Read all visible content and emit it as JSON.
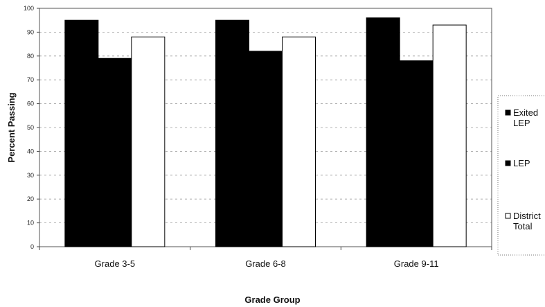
{
  "chart_data": {
    "type": "bar",
    "title": "",
    "xlabel": "Grade Group",
    "ylabel": "Percent Passing",
    "categories": [
      "Grade 3-5",
      "Grade 6-8",
      "Grade 9-11"
    ],
    "ylim": [
      0,
      100
    ],
    "yticks": [
      0,
      10,
      20,
      30,
      40,
      50,
      60,
      70,
      80,
      90,
      100
    ],
    "grid": true,
    "legend_position": "right",
    "series": [
      {
        "name": "Exited LEP",
        "legend_lines": [
          "Exited",
          "LEP"
        ],
        "values": [
          95,
          95,
          96
        ],
        "color": "#000000"
      },
      {
        "name": "LEP",
        "legend_lines": [
          "LEP"
        ],
        "values": [
          79,
          82,
          78
        ],
        "color": "#000000"
      },
      {
        "name": "District Total",
        "legend_lines": [
          "District",
          "Total"
        ],
        "values": [
          88,
          88,
          93
        ],
        "color": "#ffffff"
      }
    ]
  }
}
